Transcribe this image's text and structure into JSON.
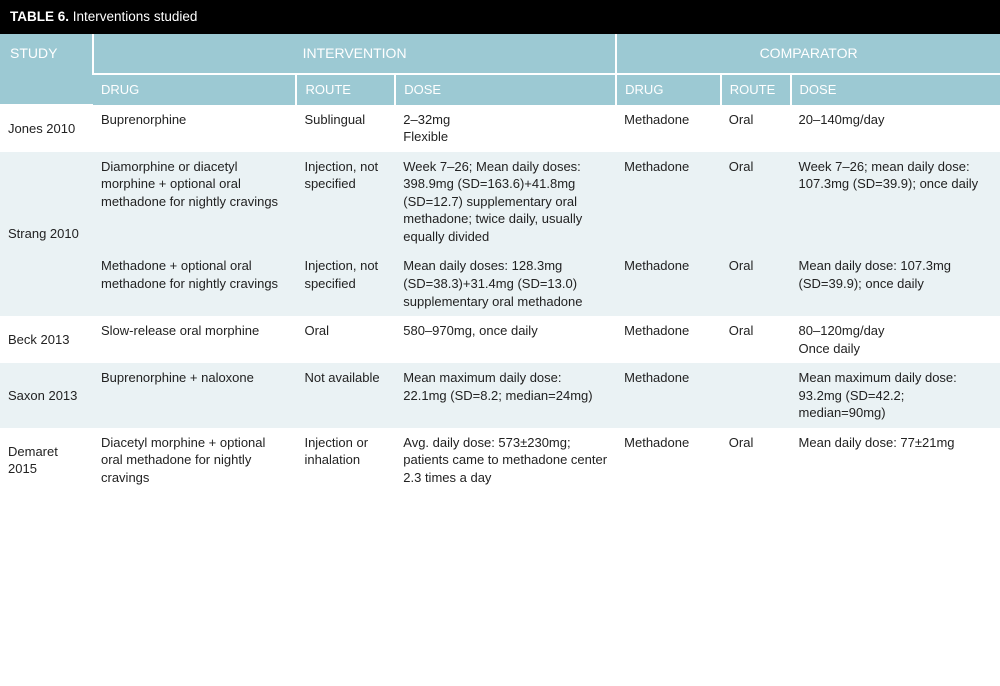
{
  "table": {
    "title_prefix": "TABLE 6.",
    "title_rest": " Interventions studied",
    "header": {
      "study": "STUDY",
      "intervention": "INTERVENTION",
      "comparator": "COMPARATOR",
      "drug": "DRUG",
      "route": "ROUTE",
      "dose": "DOSE"
    },
    "rows": [
      {
        "study": "Jones 2010",
        "i_drug": "Buprenorphine",
        "i_route": "Sublingual",
        "i_dose": "2–32mg\nFlexible",
        "c_drug": "Methadone",
        "c_route": "Oral",
        "c_dose": "20–140mg/day"
      },
      {
        "study": "Strang 2010",
        "sub": [
          {
            "i_drug": "Diamorphine or diacetyl morphine + optional oral methadone for nightly cravings",
            "i_route": "Injection, not specified",
            "i_dose": "Week 7–26; Mean daily doses: 398.9mg (SD=163.6)+41.8mg (SD=12.7) supplementary oral methadone; twice daily, usually equally divided",
            "c_drug": "Methadone",
            "c_route": "Oral",
            "c_dose": "Week 7–26; mean daily dose: 107.3mg (SD=39.9); once daily"
          },
          {
            "i_drug": "Methadone + optional oral methadone for nightly cravings",
            "i_route": "Injection, not specified",
            "i_dose": "Mean daily doses: 128.3mg (SD=38.3)+31.4mg (SD=13.0) supplementary oral methadone",
            "c_drug": "Methadone",
            "c_route": "Oral",
            "c_dose": "Mean daily dose: 107.3mg (SD=39.9); once daily"
          }
        ]
      },
      {
        "study": "Beck 2013",
        "i_drug": "Slow-release oral morphine",
        "i_route": "Oral",
        "i_dose": "580–970mg, once daily",
        "c_drug": "Methadone",
        "c_route": "Oral",
        "c_dose": "80–120mg/day\nOnce daily"
      },
      {
        "study": "Saxon 2013",
        "i_drug": "Buprenorphine + naloxone",
        "i_route": "Not available",
        "i_dose": "Mean maximum daily dose: 22.1mg (SD=8.2; median=24mg)",
        "c_drug": "Methadone",
        "c_route": "",
        "c_dose": "Mean maximum daily dose: 93.2mg (SD=42.2; median=90mg)"
      },
      {
        "study": "Demaret 2015",
        "i_drug": "Diacetyl morphine + optional oral methadone for nightly cravings",
        "i_route": "Injection or inhalation",
        "i_dose": "Avg. daily dose: 573±230mg; patients came to methadone center 2.3 times a day",
        "c_drug": "Methadone",
        "c_route": "Oral",
        "c_dose": "Mean daily dose: 77±21mg"
      }
    ]
  },
  "colors": {
    "header_bg": "#9cc9d3",
    "title_bg": "#000000",
    "alt_row_bg": "#eaf2f4",
    "text": "#222222"
  }
}
